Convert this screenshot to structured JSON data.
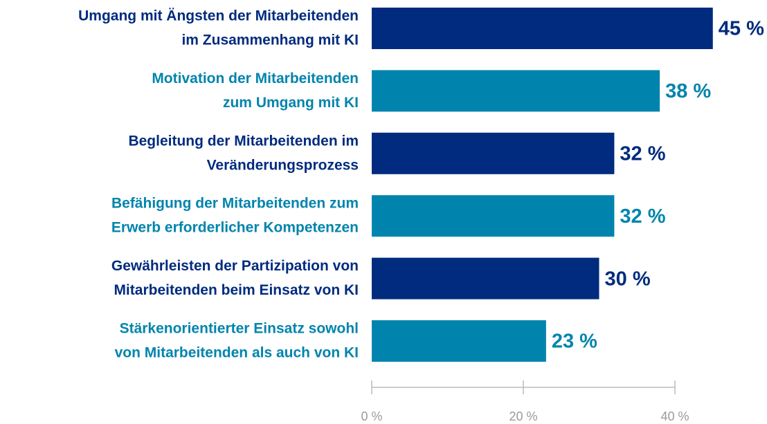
{
  "chart_data": {
    "type": "barh",
    "categories": [
      [
        "Umgang mit Ängsten der Mitarbeitenden",
        "im Zusammenhang mit KI"
      ],
      [
        "Motivation der Mitarbeitenden",
        "zum Umgang mit KI"
      ],
      [
        "Begleitung der Mitarbeitenden im",
        "Veränderungsprozess"
      ],
      [
        "Befähigung der Mitarbeitenden zum",
        "Erwerb erforderlicher Kompetenzen"
      ],
      [
        "Gewährleisten der Partizipation von",
        "Mitarbeitenden beim Einsatz von KI"
      ],
      [
        "Stärkenorientierter Einsatz sowohl",
        "von Mitarbeitenden als auch von KI"
      ]
    ],
    "values": [
      45,
      38,
      32,
      32,
      30,
      23
    ],
    "value_labels": [
      "45 %",
      "38 %",
      "32 %",
      "32 %",
      "30 %",
      "23 %"
    ],
    "colors": [
      "#002b7f",
      "#0084ad",
      "#002b7f",
      "#0084ad",
      "#002b7f",
      "#0084ad"
    ],
    "xlim": [
      0,
      40
    ],
    "xticks": [
      {
        "value": 0,
        "label": "0 %"
      },
      {
        "value": 20,
        "label": "20 %"
      },
      {
        "value": 40,
        "label": "40 %"
      }
    ]
  }
}
